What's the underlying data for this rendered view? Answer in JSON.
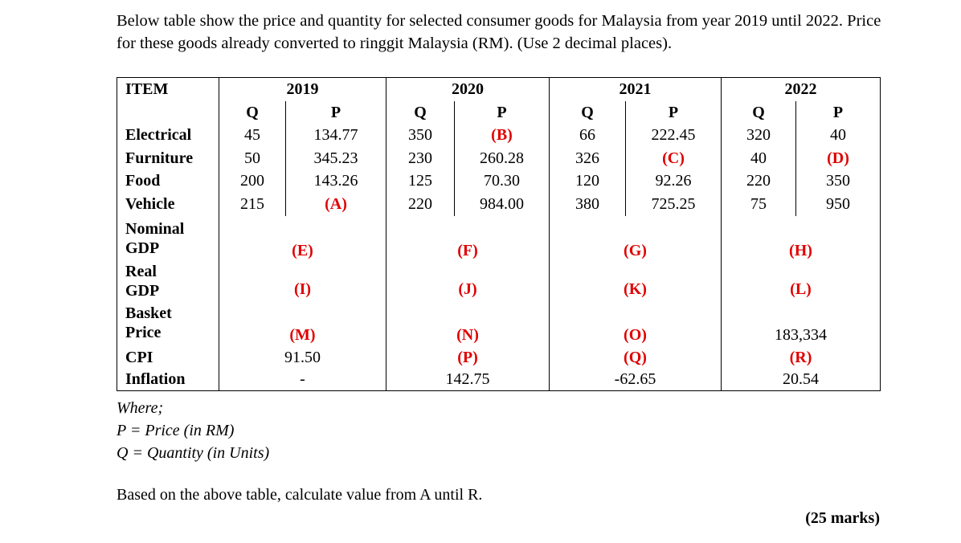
{
  "intro": "Below table show the price and quantity for selected consumer goods for Malaysia from year 2019 until 2022. Price for these goods already converted to ringgit Malaysia (RM). (Use 2 decimal places).",
  "table": {
    "header": [
      "ITEM",
      "2019",
      "2020",
      "2021",
      "2022"
    ],
    "subheader": [
      "Q",
      "P",
      "Q",
      "P",
      "Q",
      "P",
      "Q",
      "P"
    ],
    "item_rows": [
      {
        "label": "Electrical",
        "cells": [
          "45",
          "134.77",
          "350",
          "(B)",
          "66",
          "222.45",
          "320",
          "40"
        ]
      },
      {
        "label": "Furniture",
        "cells": [
          "50",
          "345.23",
          "230",
          "260.28",
          "326",
          "(C)",
          "40",
          "(D)"
        ]
      },
      {
        "label": "Food",
        "cells": [
          "200",
          "143.26",
          "125",
          "70.30",
          "120",
          "92.26",
          "220",
          "350"
        ]
      },
      {
        "label": "Vehicle",
        "cells": [
          "215",
          "(A)",
          "220",
          "984.00",
          "380",
          "725.25",
          "75",
          "950"
        ]
      }
    ],
    "summary_rows": [
      {
        "label": "Nominal GDP",
        "cells": [
          "(E)",
          "(F)",
          "(G)",
          "(H)"
        ]
      },
      {
        "label": "Real GDP",
        "cells": [
          "(I)",
          "(J)",
          "(K)",
          "(L)"
        ]
      },
      {
        "label": "Basket Price",
        "cells": [
          "(M)",
          "(N)",
          "(O)",
          "183,334"
        ]
      },
      {
        "label": "CPI",
        "cells": [
          "91.50",
          "(P)",
          "(Q)",
          "(R)"
        ]
      },
      {
        "label": "Inflation",
        "cells": [
          "-",
          "142.75",
          "-62.65",
          "20.54"
        ]
      }
    ]
  },
  "where": [
    "Where;",
    "P = Price (in RM)",
    "Q = Quantity (in Units)"
  ],
  "question": "Based on the above table, calculate value from A until R.",
  "marks": "(25 marks)"
}
